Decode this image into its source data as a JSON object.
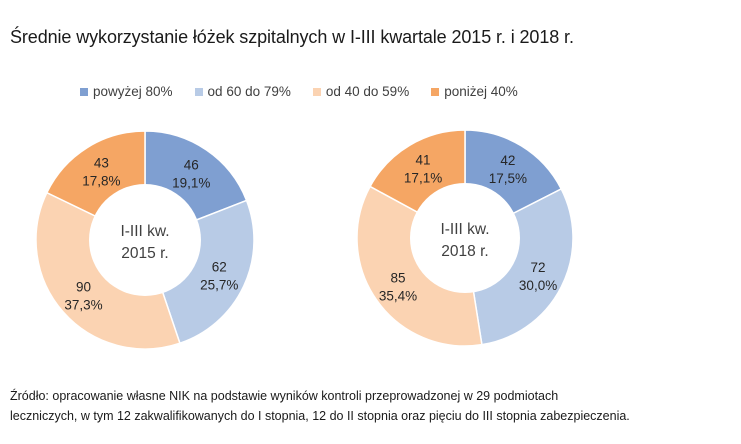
{
  "chart_data": {
    "type": "pie",
    "subtype": "donut",
    "title": "Średnie wykorzystanie łóżek szpitalnych  w I-III kwartale 2015 r. i 2018 r.",
    "legend_position": "top",
    "legend": [
      {
        "label": "powyżej 80%",
        "color": "#7F9FD1"
      },
      {
        "label": "od 60 do 79%",
        "color": "#B8CBE6"
      },
      {
        "label": "od 40 do 59%",
        "color": "#FBD3B2"
      },
      {
        "label": "poniżej 40%",
        "color": "#F5A664"
      }
    ],
    "charts": [
      {
        "center_label_line1": "I-III kw.",
        "center_label_line2": "2015 r.",
        "values": [
          46,
          62,
          90,
          43
        ],
        "percent_labels": [
          "19,1%",
          "25,7%",
          "37,3%",
          "17,8%"
        ],
        "value_labels": [
          "46",
          "62",
          "90",
          "43"
        ]
      },
      {
        "center_label_line1": "I-III kw.",
        "center_label_line2": "2018 r.",
        "values": [
          42,
          72,
          85,
          41
        ],
        "percent_labels": [
          "17,5%",
          "30,0%",
          "35,4%",
          "17,1%"
        ],
        "value_labels": [
          "42",
          "72",
          "85",
          "41"
        ]
      }
    ]
  },
  "source": {
    "line1": "Źródło: opracowanie własne NIK na podstawie wyników  kontroli przeprowadzonej  w 29 podmiotach",
    "line2": "leczniczych, w tym 12 zakwalifikowanych do I stopnia,  12 do II stopnia oraz pięciu do III stopnia  zabezpieczenia."
  }
}
